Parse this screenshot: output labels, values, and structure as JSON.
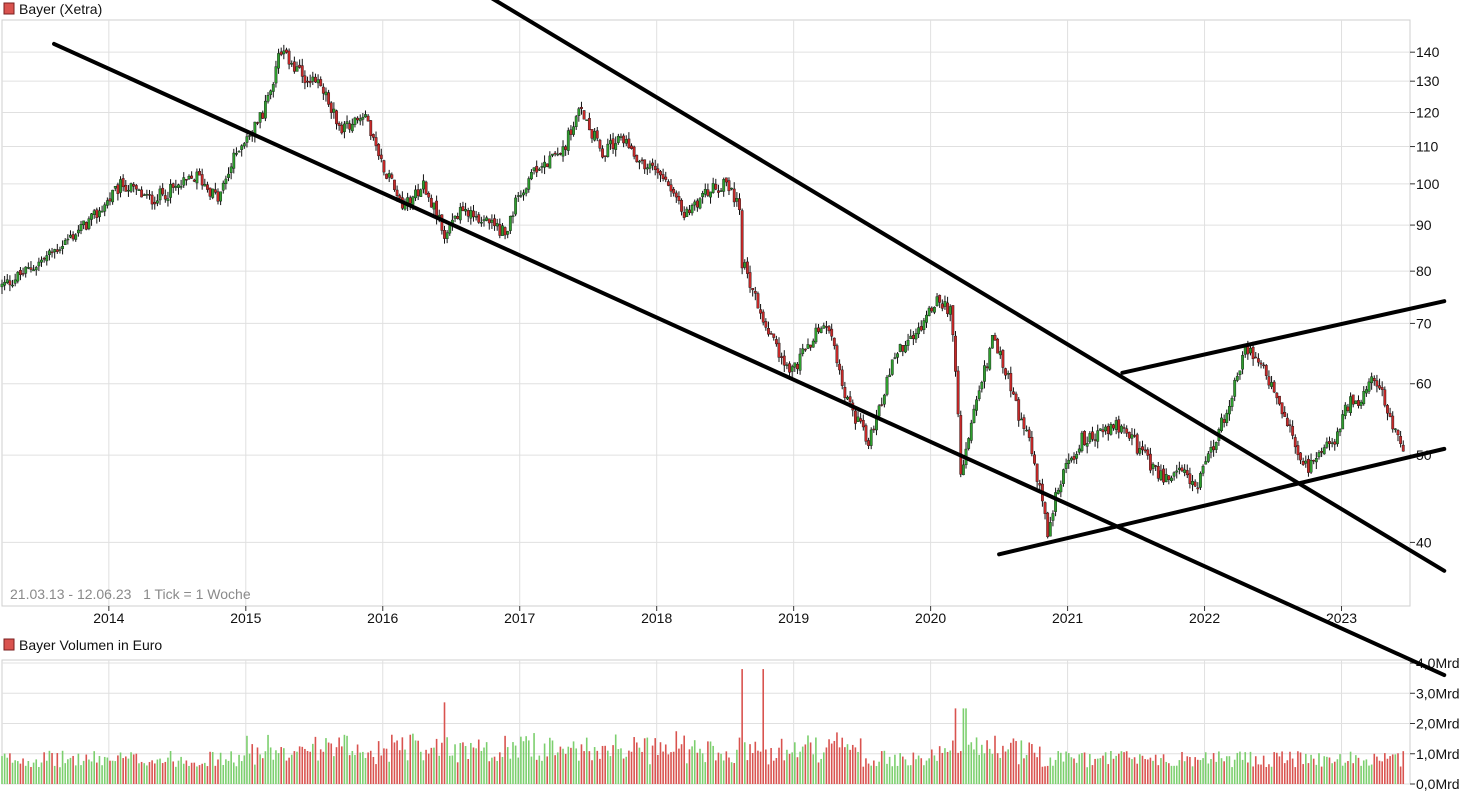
{
  "price_panel": {
    "title": "Bayer (Xetra)",
    "range_label": "21.03.13 - 12.06.23   1 Tick = 1 Woche",
    "y_ticks": [
      {
        "value": 40,
        "label": "40"
      },
      {
        "value": 50,
        "label": "50"
      },
      {
        "value": 60,
        "label": "60"
      },
      {
        "value": 70,
        "label": "70"
      },
      {
        "value": 80,
        "label": "80"
      },
      {
        "value": 90,
        "label": "90"
      },
      {
        "value": 100,
        "label": "100"
      },
      {
        "value": 110,
        "label": "110"
      },
      {
        "value": 120,
        "label": "120"
      },
      {
        "value": 130,
        "label": "130"
      },
      {
        "value": 140,
        "label": "140"
      }
    ],
    "ylim": [
      34,
      152
    ],
    "scale": "log"
  },
  "volume_panel": {
    "title": "Bayer Volumen in Euro",
    "y_ticks": [
      {
        "value": 0,
        "label": "0,0Mrd"
      },
      {
        "value": 1,
        "label": "1,0Mrd"
      },
      {
        "value": 2,
        "label": "2,0Mrd"
      },
      {
        "value": 3,
        "label": "3,0Mrd"
      },
      {
        "value": 4,
        "label": "4,0Mrd"
      }
    ],
    "ylim": [
      0,
      4.1
    ]
  },
  "x_axis": {
    "years": [
      "2014",
      "2015",
      "2016",
      "2017",
      "2018",
      "2019",
      "2020",
      "2021",
      "2022",
      "2023"
    ],
    "start": 2013.22,
    "end": 2023.5
  },
  "colors": {
    "up": "#2e9e2e",
    "down": "#c62828",
    "up_volume": "#7ccf6e",
    "down_volume": "#d9534f",
    "trendline": "#000000",
    "grid": "#e0e0e0",
    "title_marker": "#d9534f"
  },
  "chart_data": {
    "type": "candlestick",
    "title": "Bayer (Xetra)",
    "period": "21.03.13 - 12.06.23",
    "interval": "1 Tick = 1 Woche",
    "close_path": [
      [
        2013.22,
        77
      ],
      [
        2013.4,
        80
      ],
      [
        2013.55,
        83
      ],
      [
        2013.75,
        88
      ],
      [
        2013.9,
        92
      ],
      [
        2014.0,
        96
      ],
      [
        2014.1,
        100
      ],
      [
        2014.3,
        96
      ],
      [
        2014.5,
        99
      ],
      [
        2014.65,
        102
      ],
      [
        2014.8,
        96
      ],
      [
        2014.95,
        110
      ],
      [
        2015.05,
        115
      ],
      [
        2015.15,
        122
      ],
      [
        2015.25,
        140
      ],
      [
        2015.4,
        132
      ],
      [
        2015.55,
        128
      ],
      [
        2015.7,
        115
      ],
      [
        2015.85,
        120
      ],
      [
        2016.0,
        105
      ],
      [
        2016.15,
        95
      ],
      [
        2016.3,
        100
      ],
      [
        2016.45,
        88
      ],
      [
        2016.6,
        94
      ],
      [
        2016.75,
        91
      ],
      [
        2016.9,
        88
      ],
      [
        2017.0,
        98
      ],
      [
        2017.15,
        105
      ],
      [
        2017.3,
        108
      ],
      [
        2017.45,
        121
      ],
      [
        2017.6,
        108
      ],
      [
        2017.75,
        113
      ],
      [
        2017.9,
        105
      ],
      [
        2018.05,
        103
      ],
      [
        2018.2,
        92
      ],
      [
        2018.35,
        98
      ],
      [
        2018.5,
        100
      ],
      [
        2018.6,
        95
      ],
      [
        2018.62,
        82
      ],
      [
        2018.75,
        73
      ],
      [
        2018.9,
        64
      ],
      [
        2019.0,
        62
      ],
      [
        2019.15,
        68
      ],
      [
        2019.25,
        70
      ],
      [
        2019.35,
        60
      ],
      [
        2019.45,
        55
      ],
      [
        2019.55,
        52
      ],
      [
        2019.65,
        58
      ],
      [
        2019.75,
        65
      ],
      [
        2019.9,
        68
      ],
      [
        2020.05,
        75
      ],
      [
        2020.15,
        72
      ],
      [
        2020.22,
        48
      ],
      [
        2020.35,
        58
      ],
      [
        2020.45,
        67
      ],
      [
        2020.55,
        62
      ],
      [
        2020.65,
        55
      ],
      [
        2020.75,
        50
      ],
      [
        2020.85,
        41
      ],
      [
        2020.95,
        47
      ],
      [
        2021.1,
        52
      ],
      [
        2021.25,
        53
      ],
      [
        2021.4,
        54
      ],
      [
        2021.55,
        50
      ],
      [
        2021.7,
        47
      ],
      [
        2021.85,
        48
      ],
      [
        2021.95,
        46
      ],
      [
        2022.1,
        53
      ],
      [
        2022.2,
        58
      ],
      [
        2022.3,
        66
      ],
      [
        2022.4,
        64
      ],
      [
        2022.55,
        56
      ],
      [
        2022.65,
        52
      ],
      [
        2022.75,
        48
      ],
      [
        2022.85,
        50
      ],
      [
        2022.95,
        52
      ],
      [
        2023.05,
        57
      ],
      [
        2023.15,
        58
      ],
      [
        2023.25,
        61
      ],
      [
        2023.35,
        55
      ],
      [
        2023.45,
        51
      ]
    ],
    "volume_spikes": [
      [
        2016.45,
        2.7
      ],
      [
        2018.62,
        3.8
      ],
      [
        2018.78,
        3.8
      ],
      [
        2020.18,
        2.5
      ],
      [
        2020.25,
        2.5
      ]
    ],
    "trendlines": [
      {
        "from": [
          2013.6,
          143
        ],
        "to": [
          2023.75,
          28.5
        ]
      },
      {
        "from": [
          2016.0,
          190
        ],
        "to": [
          2023.75,
          37.2
        ]
      },
      {
        "from": [
          2020.5,
          38.8
        ],
        "to": [
          2023.75,
          50.8
        ]
      },
      {
        "from": [
          2021.4,
          61.7
        ],
        "to": [
          2023.75,
          74.1
        ]
      }
    ]
  }
}
